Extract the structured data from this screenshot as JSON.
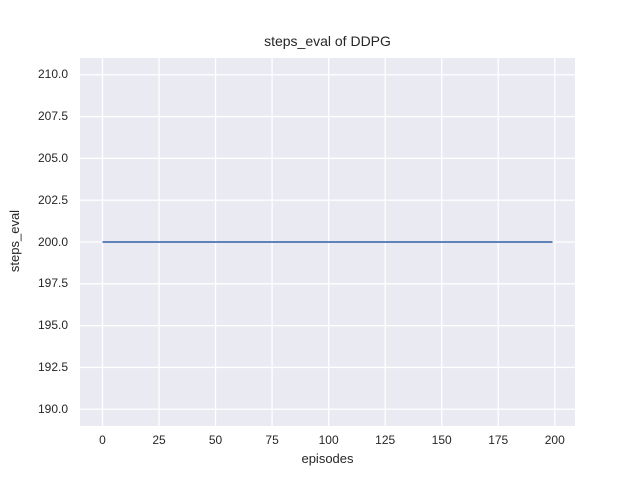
{
  "chart_data": {
    "type": "line",
    "title": "steps_eval of DDPG",
    "xlabel": "episodes",
    "ylabel": "steps_eval",
    "xlim": [
      -9.95,
      208.95
    ],
    "ylim": [
      189.0,
      211.0
    ],
    "x_ticks": [
      0,
      25,
      50,
      75,
      100,
      125,
      150,
      175,
      200
    ],
    "x_tick_labels": [
      "0",
      "25",
      "50",
      "75",
      "100",
      "125",
      "150",
      "175",
      "200"
    ],
    "y_ticks": [
      190.0,
      192.5,
      195.0,
      197.5,
      200.0,
      202.5,
      205.0,
      207.5,
      210.0
    ],
    "y_tick_labels": [
      "190.0",
      "192.5",
      "195.0",
      "197.5",
      "200.0",
      "202.5",
      "205.0",
      "207.5",
      "210.0"
    ],
    "grid": true,
    "legend_position": "none",
    "series": [
      {
        "name": "steps_eval of DDPG",
        "x": [
          0,
          199
        ],
        "y": [
          200,
          200
        ],
        "description": "constant line at steps_eval = 200 for every episode from 0 to 199",
        "color": "#4c72b0"
      }
    ],
    "style": {
      "plot_background": "#eaeaf2",
      "grid_color": "#ffffff",
      "text_color": "#262626",
      "figure_background": "#ffffff"
    }
  }
}
